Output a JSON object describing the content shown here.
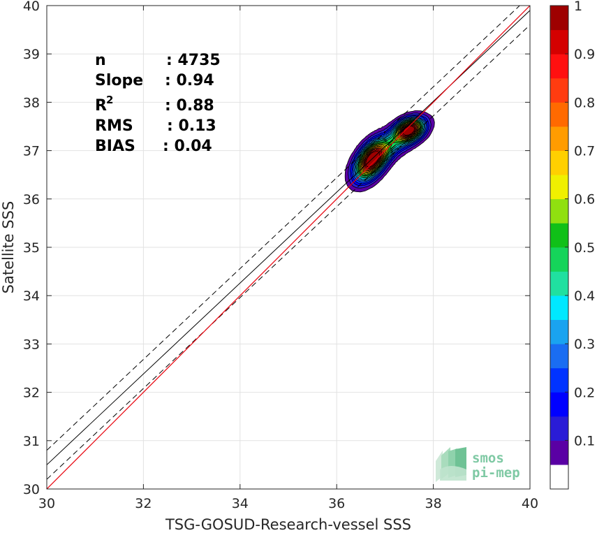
{
  "chart_data": {
    "type": "scatter",
    "xlabel": "TSG-GOSUD-Research-vessel SSS",
    "ylabel": "Satellite SSS",
    "xlim": [
      30,
      40
    ],
    "ylim": [
      30,
      40
    ],
    "xticks": [
      "30",
      "32",
      "34",
      "36",
      "38",
      "40"
    ],
    "yticks": [
      "30",
      "31",
      "32",
      "33",
      "34",
      "35",
      "36",
      "37",
      "38",
      "39",
      "40"
    ],
    "grid": true,
    "stats": {
      "n_label": "n",
      "n_value": ": 4735",
      "slope_label": "Slope",
      "slope_value": ": 0.94",
      "r2_label": "R",
      "r2_sup": "2",
      "r2_value": ": 0.88",
      "rms_label": "RMS",
      "rms_value": ": 0.13",
      "bias_label": "BIAS",
      "bias_value": ": 0.04"
    },
    "lines": {
      "identity": {
        "slope": 1,
        "intercept": 0,
        "color": "#e8000b"
      },
      "regression": {
        "slope": 0.94,
        "intercept": 2.3
      },
      "regression_upper": {
        "slope": 0.94,
        "intercept": 2.6
      },
      "regression_lower": {
        "slope": 0.94,
        "intercept": 2.0
      }
    },
    "density": {
      "clusters": [
        {
          "cx": 36.72,
          "cy": 36.8,
          "sx": 0.22,
          "sy": 0.27,
          "r": 0.5,
          "w": 1.0
        },
        {
          "cx": 37.5,
          "cy": 37.43,
          "sx": 0.2,
          "sy": 0.16,
          "r": 0.3,
          "w": 0.97
        },
        {
          "cx": 37.15,
          "cy": 37.1,
          "sx": 0.38,
          "sy": 0.28,
          "r": 0.75,
          "w": 0.28
        }
      ],
      "levels": [
        0.05,
        0.1,
        0.15,
        0.2,
        0.25,
        0.3,
        0.35,
        0.4,
        0.45,
        0.5,
        0.55,
        0.6,
        0.65,
        0.7,
        0.75,
        0.8,
        0.85,
        0.9,
        0.95
      ]
    },
    "colorbar": {
      "ticks": [
        "0.1",
        "0.2",
        "0.3",
        "0.4",
        "0.5",
        "0.6",
        "0.7",
        "0.8",
        "0.9",
        "1"
      ],
      "colors": [
        "#5a00a4",
        "#2a1cd6",
        "#0000ff",
        "#0033ff",
        "#1a6df2",
        "#1aa3f0",
        "#00e8ff",
        "#20e0a0",
        "#15d45a",
        "#10c018",
        "#90e010",
        "#f0f000",
        "#ffd000",
        "#ff9c00",
        "#ff6a00",
        "#ff3c10",
        "#ff1010",
        "#d40000",
        "#9e0000"
      ]
    }
  },
  "logo": {
    "line1": "smos",
    "line2": "pi-mep"
  }
}
